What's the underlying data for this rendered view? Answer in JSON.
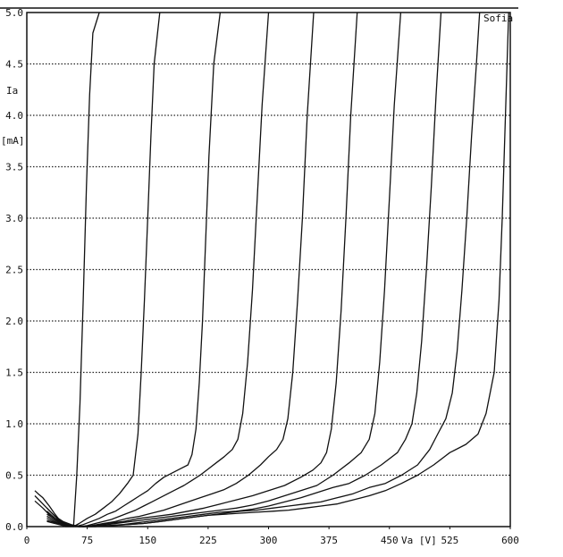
{
  "chart_data": {
    "type": "line",
    "title": "",
    "corner_label": "Sofia",
    "ylabel_lines": [
      "Ia",
      "[mA]"
    ],
    "xlabel": "Va [V]",
    "xlim": [
      0,
      600
    ],
    "ylim": [
      0.0,
      5.0
    ],
    "x_ticks": [
      0,
      75,
      150,
      225,
      300,
      375,
      450,
      525,
      600
    ],
    "y_ticks": [
      "0.0",
      "0.5",
      "1.0",
      "1.5",
      "2.0",
      "2.5",
      "3.0",
      "3.5",
      "4.0",
      "4.5",
      "5.0"
    ],
    "grid": "horizontal dotted",
    "line_color": "#111111",
    "series": [
      {
        "x": [
          10,
          14,
          20,
          28,
          35,
          42,
          48,
          53,
          58,
          62,
          66,
          70,
          74,
          78,
          82,
          90
        ],
        "y": [
          0.35,
          0.32,
          0.28,
          0.2,
          0.12,
          0.05,
          0.0,
          0.0,
          0.0,
          0.5,
          1.2,
          2.2,
          3.3,
          4.2,
          4.8,
          5.0
        ]
      },
      {
        "x": [
          10,
          20,
          30,
          40,
          50,
          58,
          65,
          75,
          85,
          95,
          105,
          115,
          125,
          132,
          138,
          142,
          146,
          150,
          154,
          158,
          165
        ],
        "y": [
          0.3,
          0.22,
          0.14,
          0.06,
          0.01,
          0.0,
          0.03,
          0.08,
          0.12,
          0.18,
          0.24,
          0.32,
          0.42,
          0.5,
          0.9,
          1.5,
          2.2,
          3.0,
          3.8,
          4.5,
          5.0
        ]
      },
      {
        "x": [
          10,
          20,
          30,
          40,
          50,
          60,
          70,
          80,
          90,
          100,
          110,
          120,
          130,
          140,
          150,
          160,
          170,
          180,
          190,
          200,
          205,
          210,
          214,
          218,
          222,
          226,
          232,
          240
        ],
        "y": [
          0.25,
          0.18,
          0.1,
          0.05,
          0.02,
          0.0,
          0.02,
          0.05,
          0.08,
          0.12,
          0.15,
          0.2,
          0.25,
          0.3,
          0.35,
          0.42,
          0.48,
          0.52,
          0.56,
          0.6,
          0.7,
          0.95,
          1.4,
          2.0,
          2.8,
          3.6,
          4.5,
          5.0
        ]
      },
      {
        "x": [
          25,
          35,
          45,
          55,
          65,
          75,
          85,
          95,
          105,
          115,
          125,
          135,
          145,
          155,
          165,
          175,
          185,
          195,
          205,
          215,
          225,
          235,
          245,
          255,
          262,
          268,
          274,
          280,
          286,
          292,
          300
        ],
        "y": [
          0.18,
          0.1,
          0.05,
          0.02,
          0.0,
          0.01,
          0.03,
          0.05,
          0.07,
          0.1,
          0.13,
          0.16,
          0.2,
          0.24,
          0.28,
          0.32,
          0.36,
          0.4,
          0.45,
          0.5,
          0.56,
          0.62,
          0.68,
          0.75,
          0.85,
          1.1,
          1.6,
          2.3,
          3.2,
          4.1,
          5.0
        ]
      },
      {
        "x": [
          25,
          35,
          45,
          55,
          65,
          80,
          95,
          110,
          125,
          140,
          155,
          170,
          185,
          200,
          215,
          230,
          245,
          260,
          275,
          290,
          300,
          310,
          318,
          324,
          330,
          336,
          342,
          348,
          356
        ],
        "y": [
          0.15,
          0.08,
          0.04,
          0.01,
          0.0,
          0.01,
          0.03,
          0.05,
          0.08,
          0.1,
          0.13,
          0.16,
          0.2,
          0.24,
          0.28,
          0.32,
          0.36,
          0.42,
          0.5,
          0.6,
          0.68,
          0.75,
          0.85,
          1.05,
          1.5,
          2.2,
          3.0,
          4.0,
          5.0
        ]
      },
      {
        "x": [
          25,
          40,
          55,
          70,
          85,
          100,
          120,
          140,
          160,
          180,
          200,
          220,
          240,
          260,
          280,
          300,
          320,
          340,
          355,
          365,
          372,
          378,
          384,
          390,
          396,
          402,
          410
        ],
        "y": [
          0.12,
          0.05,
          0.01,
          0.0,
          0.01,
          0.03,
          0.05,
          0.08,
          0.1,
          0.12,
          0.15,
          0.18,
          0.22,
          0.26,
          0.3,
          0.35,
          0.4,
          0.48,
          0.55,
          0.62,
          0.72,
          0.95,
          1.4,
          2.1,
          3.0,
          4.0,
          5.0
        ]
      },
      {
        "x": [
          25,
          40,
          55,
          70,
          85,
          100,
          120,
          140,
          160,
          180,
          200,
          220,
          240,
          260,
          280,
          300,
          320,
          340,
          360,
          380,
          400,
          415,
          425,
          432,
          438,
          444,
          450,
          456,
          464
        ],
        "y": [
          0.1,
          0.04,
          0.01,
          0.0,
          0.01,
          0.02,
          0.04,
          0.06,
          0.08,
          0.1,
          0.12,
          0.14,
          0.16,
          0.18,
          0.21,
          0.25,
          0.3,
          0.35,
          0.4,
          0.5,
          0.62,
          0.72,
          0.85,
          1.1,
          1.6,
          2.3,
          3.2,
          4.1,
          5.0
        ]
      },
      {
        "x": [
          25,
          40,
          60,
          80,
          100,
          120,
          140,
          160,
          180,
          200,
          220,
          240,
          260,
          280,
          300,
          320,
          340,
          360,
          380,
          400,
          420,
          440,
          460,
          470,
          478,
          484,
          490,
          496,
          502,
          508,
          514
        ],
        "y": [
          0.08,
          0.03,
          0.0,
          0.0,
          0.01,
          0.02,
          0.04,
          0.06,
          0.08,
          0.1,
          0.12,
          0.14,
          0.15,
          0.17,
          0.2,
          0.24,
          0.28,
          0.33,
          0.38,
          0.42,
          0.5,
          0.6,
          0.72,
          0.85,
          1.0,
          1.3,
          1.8,
          2.5,
          3.3,
          4.2,
          5.0
        ]
      },
      {
        "x": [
          25,
          45,
          65,
          85,
          105,
          125,
          145,
          165,
          185,
          205,
          225,
          245,
          265,
          285,
          305,
          325,
          345,
          365,
          385,
          405,
          425,
          445,
          465,
          485,
          500,
          510,
          520,
          528,
          534,
          540,
          546,
          552,
          558,
          562
        ],
        "y": [
          0.06,
          0.02,
          0.0,
          0.0,
          0.01,
          0.02,
          0.03,
          0.05,
          0.07,
          0.09,
          0.11,
          0.13,
          0.15,
          0.16,
          0.18,
          0.2,
          0.22,
          0.24,
          0.28,
          0.32,
          0.38,
          0.42,
          0.5,
          0.6,
          0.75,
          0.9,
          1.05,
          1.3,
          1.7,
          2.3,
          3.0,
          3.8,
          4.5,
          5.0
        ]
      },
      {
        "x": [
          25,
          45,
          65,
          85,
          105,
          125,
          145,
          165,
          185,
          205,
          225,
          245,
          265,
          285,
          305,
          325,
          345,
          365,
          385,
          405,
          425,
          445,
          465,
          485,
          505,
          525,
          545,
          560,
          570,
          580,
          586,
          590,
          594,
          598
        ],
        "y": [
          0.05,
          0.01,
          0.0,
          0.0,
          0.01,
          0.02,
          0.03,
          0.05,
          0.07,
          0.09,
          0.11,
          0.12,
          0.13,
          0.14,
          0.15,
          0.16,
          0.18,
          0.2,
          0.22,
          0.26,
          0.3,
          0.35,
          0.42,
          0.5,
          0.6,
          0.72,
          0.8,
          0.9,
          1.1,
          1.5,
          2.2,
          3.0,
          4.0,
          5.0
        ]
      }
    ]
  }
}
